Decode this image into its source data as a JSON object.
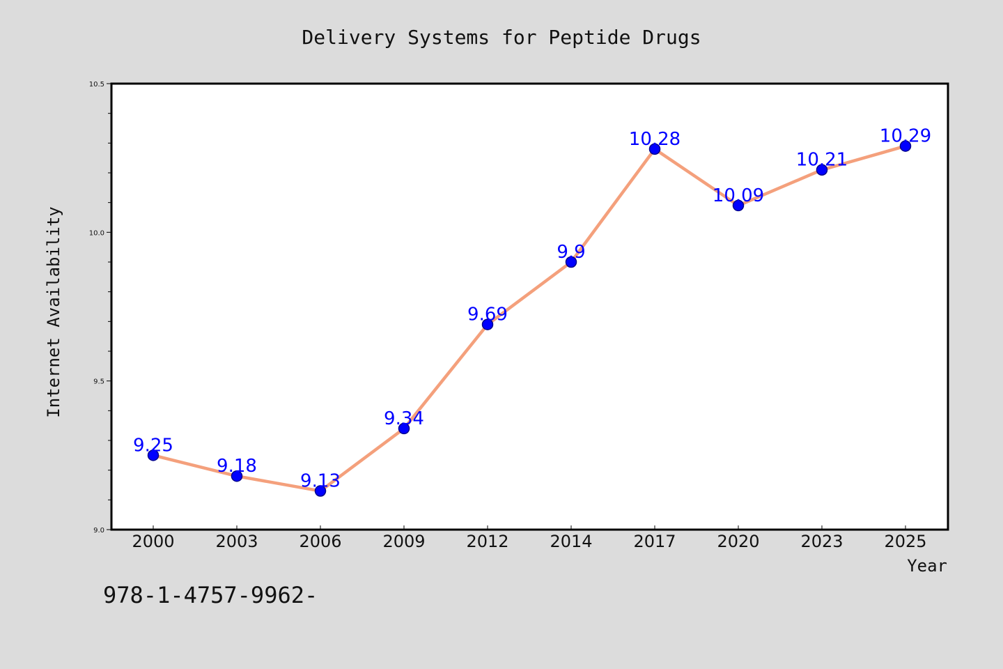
{
  "colors": {
    "background": "#dcdcdc",
    "plot_background": "#ffffff",
    "line": "#f4a07c",
    "marker_fill": "#0000ff",
    "marker_stroke": "#00008b",
    "data_label": "#0000ff"
  },
  "footer_text": "978-1-4757-9962-",
  "chart_data": {
    "type": "line",
    "title": "Delivery Systems for Peptide Drugs",
    "xlabel": "Year",
    "ylabel": "Internet Availability",
    "categories": [
      "2000",
      "2003",
      "2006",
      "2009",
      "2012",
      "2014",
      "2017",
      "2020",
      "2023",
      "2025"
    ],
    "series": [
      {
        "values": [
          9.25,
          9.18,
          9.13,
          9.34,
          9.69,
          9.9,
          10.28,
          10.09,
          10.21,
          10.29
        ],
        "labels": [
          "9.25",
          "9.18",
          "9.13",
          "9.34",
          "9.69",
          "9.9",
          "10.28",
          "10.09",
          "10.21",
          "10.29"
        ]
      }
    ],
    "ylim": [
      9.0,
      10.5
    ],
    "yticks": [
      "9.0",
      "9.5",
      "10.0",
      "10.5"
    ],
    "y_minor_step": 0.1,
    "grid": false,
    "legend": "none"
  }
}
